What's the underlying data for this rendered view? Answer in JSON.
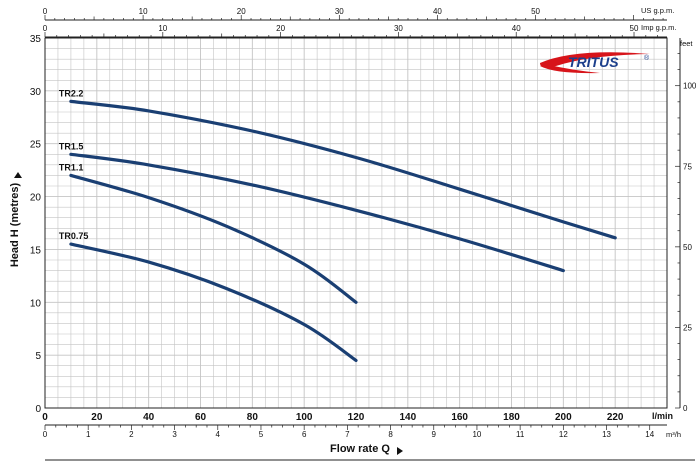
{
  "chart_data": {
    "type": "line",
    "title": "",
    "xlabel": "Flow rate Q",
    "ylabel": "Head H (metres)",
    "x_unit": "l/min",
    "xlim": [
      0,
      240
    ],
    "ylim": [
      0,
      35
    ],
    "x_ticks": [
      0,
      20,
      40,
      60,
      80,
      100,
      120,
      140,
      160,
      180,
      200,
      220
    ],
    "y_ticks": [
      0,
      5,
      10,
      15,
      20,
      25,
      30,
      35
    ],
    "grid": true,
    "top_axis_us": {
      "label": "US g.p.m.",
      "range": [
        0,
        63.4
      ],
      "ticks": [
        0,
        10,
        20,
        30,
        40,
        50
      ]
    },
    "top_axis_imp": {
      "label": "Imp g.p.m.",
      "range": [
        0,
        52.8
      ],
      "ticks": [
        0,
        10,
        20,
        30,
        40,
        50
      ]
    },
    "bottom_axis_m3h": {
      "label": "m³/h",
      "range": [
        0,
        14.4
      ],
      "ticks": [
        0,
        1,
        2,
        3,
        4,
        5,
        6,
        7,
        8,
        9,
        10,
        11,
        12,
        13,
        14
      ]
    },
    "right_axis_feet": {
      "label": "feet",
      "range": [
        0,
        114.8
      ],
      "ticks": [
        0,
        25,
        50,
        75,
        100
      ]
    },
    "series": [
      {
        "name": "TR2.2",
        "x": [
          10,
          40,
          80,
          120,
          160,
          200,
          220
        ],
        "y": [
          29.0,
          28.1,
          26.2,
          23.7,
          20.7,
          17.6,
          16.1
        ]
      },
      {
        "name": "TR1.5",
        "x": [
          10,
          40,
          80,
          120,
          160,
          200
        ],
        "y": [
          24.0,
          23.0,
          21.1,
          18.7,
          16.0,
          13.0
        ]
      },
      {
        "name": "TR1.1",
        "x": [
          10,
          40,
          70,
          100,
          120
        ],
        "y": [
          22.0,
          19.9,
          17.2,
          13.6,
          10.0
        ]
      },
      {
        "name": "TR0.75",
        "x": [
          10,
          40,
          70,
          100,
          120
        ],
        "y": [
          15.5,
          13.8,
          11.3,
          7.9,
          4.5
        ]
      }
    ]
  },
  "logo": {
    "text": "TRITUS",
    "mark": "®"
  },
  "colors": {
    "curve": "#1a3f73",
    "grid": "#c4c4c4",
    "logo_red": "#d7141a",
    "logo_blue": "#1c3f8c"
  }
}
